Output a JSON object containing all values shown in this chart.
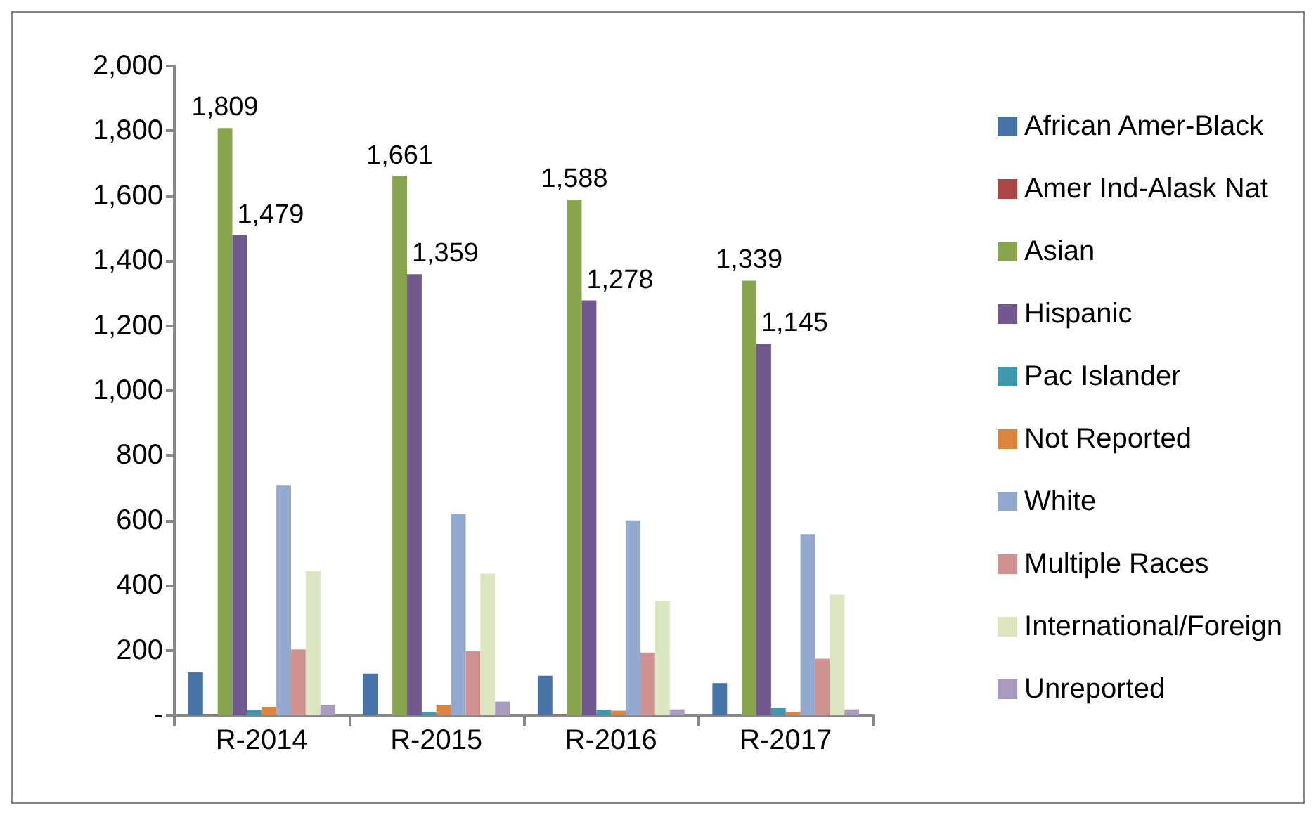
{
  "chart_data": {
    "type": "bar",
    "categories": [
      "R-2014",
      "R-2015",
      "R-2016",
      "R-2017"
    ],
    "series": [
      {
        "name": "African Amer-Black",
        "color": "#4572a7",
        "values": [
          132,
          128,
          122,
          99
        ]
      },
      {
        "name": "Amer Ind-Alask Nat",
        "color": "#aa4643",
        "values": [
          3,
          2,
          3,
          2
        ]
      },
      {
        "name": "Asian",
        "color": "#89a54e",
        "values": [
          1809,
          1661,
          1588,
          1339
        ],
        "value_labels": [
          "1,809",
          "1,661",
          "1,588",
          "1,339"
        ]
      },
      {
        "name": "Hispanic",
        "color": "#71588f",
        "values": [
          1479,
          1359,
          1278,
          1145
        ],
        "value_labels": [
          "1,479",
          "1,359",
          "1,278",
          "1,145"
        ]
      },
      {
        "name": "Pac Islander",
        "color": "#4198af",
        "values": [
          17,
          11,
          17,
          24
        ]
      },
      {
        "name": "Not Reported",
        "color": "#db843d",
        "values": [
          26,
          32,
          14,
          11
        ]
      },
      {
        "name": "White",
        "color": "#93a9cf",
        "values": [
          707,
          621,
          600,
          558
        ]
      },
      {
        "name": "Multiple Races",
        "color": "#d19392",
        "values": [
          203,
          197,
          193,
          174
        ]
      },
      {
        "name": "International/Foreign",
        "color": "#dae6bf",
        "values": [
          444,
          436,
          353,
          371
        ]
      },
      {
        "name": "Unreported",
        "color": "#a99bbd",
        "values": [
          32,
          42,
          18,
          18
        ]
      }
    ],
    "ylim": [
      0,
      2000
    ],
    "yticks": [
      {
        "value": 0,
        "label": "-"
      },
      {
        "value": 200,
        "label": "200"
      },
      {
        "value": 400,
        "label": "400"
      },
      {
        "value": 600,
        "label": "600"
      },
      {
        "value": 800,
        "label": "800"
      },
      {
        "value": 1000,
        "label": "1,000"
      },
      {
        "value": 1200,
        "label": "1,200"
      },
      {
        "value": 1400,
        "label": "1,400"
      },
      {
        "value": 1600,
        "label": "1,600"
      },
      {
        "value": 1800,
        "label": "1,800"
      },
      {
        "value": 2000,
        "label": "2,000"
      }
    ],
    "grid": false,
    "legend": "right"
  }
}
